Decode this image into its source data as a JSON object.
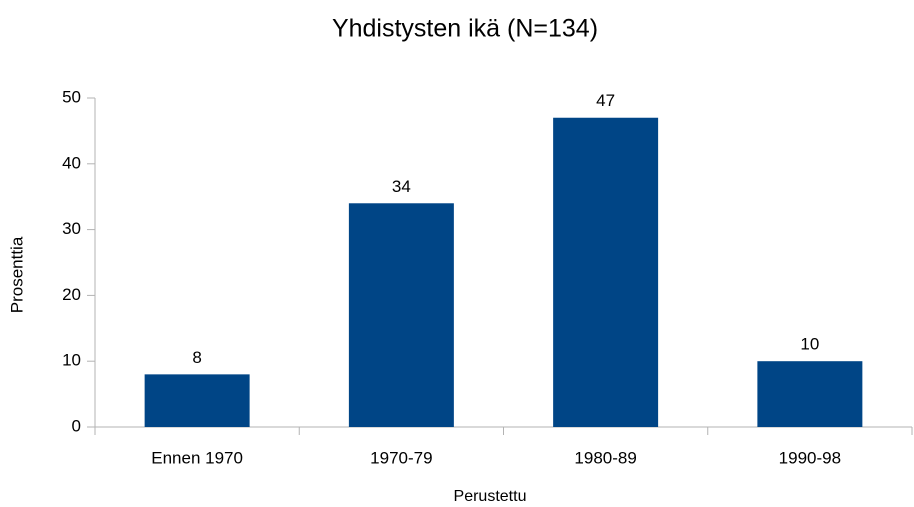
{
  "chart_data": {
    "type": "bar",
    "title": "Yhdistysten ikä (N=134)",
    "x_label": "Perustettu",
    "y_label": "Prosenttia",
    "categories": [
      "Ennen 1970",
      "1970-79",
      "1980-89",
      "1990-98"
    ],
    "values": [
      8,
      34,
      47,
      10
    ],
    "color": "#004586",
    "ylim": [
      0,
      50
    ],
    "yticks": [
      0,
      10,
      20,
      30,
      40,
      50
    ],
    "grid": false
  }
}
